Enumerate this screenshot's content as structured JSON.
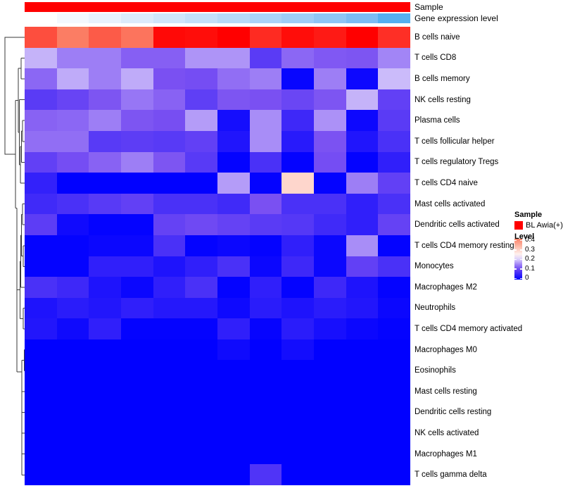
{
  "annotation": {
    "sample_label": "Sample",
    "gene_label": "Gene expression level",
    "sample_color": "#FF0000",
    "gene_colors": [
      "#FFFFFF",
      "#F3F8FE",
      "#E8F2FD",
      "#DCEBFB",
      "#D0E5FA",
      "#C4DFF9",
      "#B7DAF8",
      "#ABD3F7",
      "#9FCDF6",
      "#8FC5F4",
      "#7CBCF3",
      "#55AFF0"
    ]
  },
  "legend": {
    "sample_title": "Sample",
    "sample_items": [
      {
        "label": "BL Awia(+)",
        "color": "#FF0000"
      }
    ],
    "level_title": "Level",
    "level_ticks": [
      "0.4",
      "0.3",
      "0.2",
      "0.1",
      "0"
    ],
    "level_tick_values": [
      0.4,
      0.3,
      0.2,
      0.1,
      0
    ],
    "level_max": 0.4,
    "level_min": 0
  },
  "chart_data": {
    "type": "heatmap",
    "title": "",
    "n_columns": 12,
    "column_labels_shown": false,
    "row_dendrogram": true,
    "rows": [
      "B cells naive",
      "T cells CD8",
      "B cells memory",
      "NK cells resting",
      "Plasma cells",
      "T cells follicular helper",
      "T cells regulatory  Tregs",
      "T cells CD4 naive",
      "Mast cells activated",
      "Dendritic cells activated",
      "T cells CD4 memory resting",
      "Monocytes",
      "Macrophages M2",
      "Neutrophils",
      "T cells CD4 memory activated",
      "Macrophages M0",
      "Eosinophils",
      "Mast cells resting",
      "Dendritic cells resting",
      "NK cells activated",
      "Macrophages M1",
      "T cells gamma delta"
    ],
    "values": [
      [
        0.46,
        0.405,
        0.445,
        0.415,
        0.54,
        0.535,
        0.55,
        0.5,
        0.535,
        0.52,
        0.55,
        0.495
      ],
      [
        0.18,
        0.145,
        0.145,
        0.125,
        0.125,
        0.16,
        0.16,
        0.085,
        0.13,
        0.12,
        0.118,
        0.15
      ],
      [
        0.13,
        0.175,
        0.145,
        0.175,
        0.115,
        0.11,
        0.135,
        0.145,
        0.008,
        0.145,
        0.012,
        0.185
      ],
      [
        0.085,
        0.098,
        0.118,
        0.14,
        0.127,
        0.09,
        0.118,
        0.115,
        0.1,
        0.118,
        0.18,
        0.092
      ],
      [
        0.127,
        0.13,
        0.145,
        0.118,
        0.112,
        0.165,
        0.02,
        0.155,
        0.058,
        0.158,
        0.012,
        0.085
      ],
      [
        0.135,
        0.135,
        0.083,
        0.088,
        0.083,
        0.092,
        0.03,
        0.155,
        0.038,
        0.116,
        0.03,
        0.07
      ],
      [
        0.092,
        0.11,
        0.127,
        0.145,
        0.118,
        0.083,
        0.004,
        0.07,
        0.004,
        0.11,
        0.004,
        0.045
      ],
      [
        0.048,
        0.001,
        0.001,
        0.001,
        0.001,
        0.001,
        0.165,
        0.004,
        0.286,
        0.004,
        0.145,
        0.092
      ],
      [
        0.06,
        0.07,
        0.083,
        0.092,
        0.07,
        0.07,
        0.06,
        0.115,
        0.07,
        0.07,
        0.045,
        0.07
      ],
      [
        0.088,
        0.015,
        0.004,
        0.004,
        0.095,
        0.105,
        0.095,
        0.085,
        0.08,
        0.06,
        0.045,
        0.095
      ],
      [
        0.004,
        0.004,
        0.01,
        0.01,
        0.07,
        0.004,
        0.01,
        0.004,
        0.045,
        0.01,
        0.155,
        0.004
      ],
      [
        0.004,
        0.004,
        0.045,
        0.045,
        0.028,
        0.045,
        0.07,
        0.01,
        0.058,
        0.01,
        0.092,
        0.07
      ],
      [
        0.07,
        0.058,
        0.028,
        0.01,
        0.045,
        0.07,
        0.004,
        0.045,
        0.004,
        0.058,
        0.028,
        0.004
      ],
      [
        0.028,
        0.04,
        0.032,
        0.045,
        0.035,
        0.035,
        0.013,
        0.04,
        0.028,
        0.04,
        0.032,
        0.01
      ],
      [
        0.032,
        0.014,
        0.045,
        0.004,
        0.004,
        0.004,
        0.045,
        0.006,
        0.04,
        0.022,
        0.01,
        0.004
      ],
      [
        0.001,
        0.001,
        0.001,
        0.001,
        0.001,
        0.001,
        0.014,
        0.001,
        0.018,
        0.001,
        0.001,
        0.001
      ],
      [
        0.001,
        0.001,
        0.001,
        0.001,
        0.001,
        0.001,
        0.001,
        0.001,
        0.001,
        0.001,
        0.001,
        0.001
      ],
      [
        0.001,
        0.001,
        0.001,
        0.001,
        0.001,
        0.001,
        0.001,
        0.001,
        0.001,
        0.001,
        0.001,
        0.001
      ],
      [
        0.001,
        0.001,
        0.001,
        0.001,
        0.001,
        0.001,
        0.001,
        0.001,
        0.001,
        0.001,
        0.001,
        0.001
      ],
      [
        0.001,
        0.001,
        0.001,
        0.001,
        0.001,
        0.001,
        0.001,
        0.001,
        0.001,
        0.001,
        0.001,
        0.001
      ],
      [
        0.001,
        0.001,
        0.001,
        0.001,
        0.001,
        0.001,
        0.001,
        0.001,
        0.001,
        0.001,
        0.001,
        0.001
      ],
      [
        0.001,
        0.001,
        0.001,
        0.001,
        0.001,
        0.001,
        0.001,
        0.075,
        0.001,
        0.001,
        0.001,
        0.001
      ]
    ],
    "colormap": {
      "stops": [
        [
          0,
          "#0000FF"
        ],
        [
          0.115,
          "#7A50F2"
        ],
        [
          0.23,
          "#FFFFFF"
        ],
        [
          0.39,
          "#FB8A6E"
        ],
        [
          0.55,
          "#FF0000"
        ]
      ]
    }
  }
}
